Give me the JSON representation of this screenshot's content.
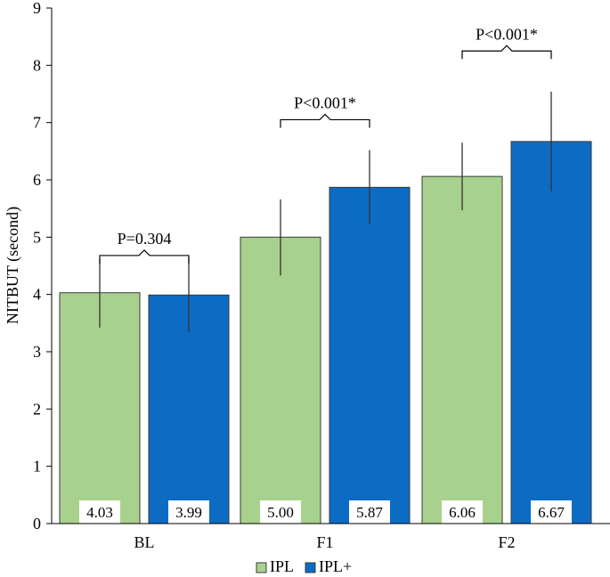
{
  "chart_data": {
    "type": "bar",
    "title": "",
    "xlabel": "",
    "ylabel": "NITBUT (second)",
    "ylim": [
      0,
      9
    ],
    "yticks": [
      "0",
      "1",
      "2",
      "3",
      "4",
      "5",
      "6",
      "7",
      "8",
      "9"
    ],
    "categories": [
      "BL",
      "F1",
      "F2"
    ],
    "series": [
      {
        "name": "IPL",
        "color": "#a9d18e",
        "values": [
          4.03,
          5.0,
          6.06
        ],
        "labels": [
          "4.03",
          "5.00",
          "6.06"
        ],
        "error_low": [
          3.42,
          4.33,
          5.47
        ],
        "error_high": [
          4.62,
          5.66,
          6.65
        ]
      },
      {
        "name": "IPL+",
        "color": "#0c6cc4",
        "values": [
          3.99,
          5.87,
          6.67
        ],
        "labels": [
          "3.99",
          "5.87",
          "6.67"
        ],
        "error_low": [
          3.35,
          5.23,
          5.8
        ],
        "error_high": [
          4.64,
          6.52,
          7.54
        ]
      }
    ],
    "annotations": [
      {
        "category": "BL",
        "text": "P=0.304",
        "y": 4.68
      },
      {
        "category": "F1",
        "text": "P<0.001*",
        "y": 7.05
      },
      {
        "category": "F2",
        "text": "P<0.001*",
        "y": 8.25
      }
    ],
    "legend": {
      "position": "bottom",
      "items": [
        {
          "label": "IPL",
          "color": "#a9d18e"
        },
        {
          "label": "IPL+",
          "color": "#0c6cc4"
        }
      ]
    },
    "grid": false
  }
}
